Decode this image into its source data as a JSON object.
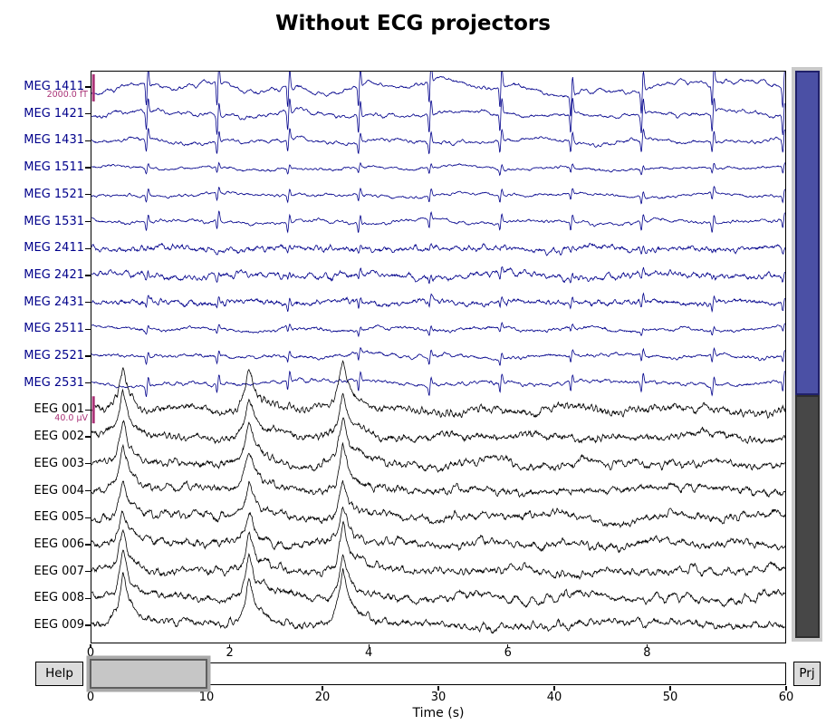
{
  "chart_data": {
    "type": "line",
    "title": "Without ECG projectors",
    "xlabel": "Time (s)",
    "x_axis": {
      "tick_labels": [
        "0",
        "2",
        "4",
        "6",
        "8"
      ],
      "tick_values": [
        0,
        2,
        4,
        6,
        8
      ],
      "window_s": [
        0,
        10
      ]
    },
    "scale_bars": {
      "meg": "2000.0 fT",
      "eeg": "40.0 µV"
    },
    "artifacts": {
      "ecg_first_beat_s": 0.8,
      "ecg_period_s": 1.02,
      "eeg_spike_times_s": [
        0.45,
        2.27,
        3.62
      ]
    },
    "channels": [
      {
        "label": "MEG 1411",
        "type": "meg",
        "ecg": 24,
        "slow": 6.5,
        "fast": 1.6,
        "hf": 0.7,
        "jit": 0.5
      },
      {
        "label": "MEG 1421",
        "type": "meg",
        "ecg": 20,
        "slow": 5.0,
        "fast": 1.6,
        "hf": 0.7,
        "jit": 0.5
      },
      {
        "label": "MEG 1431",
        "type": "meg",
        "ecg": 13,
        "slow": 3.2,
        "fast": 1.4,
        "hf": 0.8,
        "jit": 0.5
      },
      {
        "label": "MEG 1511",
        "type": "meg",
        "ecg": 6,
        "slow": 2.0,
        "fast": 1.0,
        "hf": 0.6,
        "jit": 0.4
      },
      {
        "label": "MEG 1521",
        "type": "meg",
        "ecg": 7.5,
        "slow": 2.2,
        "fast": 1.1,
        "hf": 0.6,
        "jit": 0.4
      },
      {
        "label": "MEG 1531",
        "type": "meg",
        "ecg": 10,
        "slow": 2.6,
        "fast": 1.2,
        "hf": 0.7,
        "jit": 0.4
      },
      {
        "label": "MEG 2411",
        "type": "meg",
        "ecg": 3.5,
        "slow": 1.8,
        "fast": 1.9,
        "hf": 1.2,
        "jit": 0.9
      },
      {
        "label": "MEG 2421",
        "type": "meg",
        "ecg": 6,
        "slow": 2.2,
        "fast": 2.0,
        "hf": 1.3,
        "jit": 0.9
      },
      {
        "label": "MEG 2431",
        "type": "meg",
        "ecg": 7,
        "slow": 2.0,
        "fast": 1.8,
        "hf": 1.2,
        "jit": 0.9
      },
      {
        "label": "MEG 2511",
        "type": "meg",
        "ecg": 5,
        "slow": 2.0,
        "fast": 1.2,
        "hf": 0.7,
        "jit": 0.5
      },
      {
        "label": "MEG 2521",
        "type": "meg",
        "ecg": 7.5,
        "slow": 2.2,
        "fast": 1.2,
        "hf": 0.7,
        "jit": 0.5
      },
      {
        "label": "MEG 2531",
        "type": "meg",
        "ecg": 11,
        "slow": 2.4,
        "fast": 1.3,
        "hf": 0.8,
        "jit": 0.5
      },
      {
        "label": "EEG 001",
        "type": "eeg",
        "spike": 52,
        "slow": 3.5,
        "fast": 2.6,
        "hf": 1.8,
        "jit": 1.3
      },
      {
        "label": "EEG 002",
        "type": "eeg",
        "spike": 46,
        "slow": 3.5,
        "fast": 2.6,
        "hf": 1.8,
        "jit": 1.3
      },
      {
        "label": "EEG 003",
        "type": "eeg",
        "spike": 45,
        "slow": 3.5,
        "fast": 2.6,
        "hf": 1.8,
        "jit": 1.3
      },
      {
        "label": "EEG 004",
        "type": "eeg",
        "spike": 52,
        "slow": 3.5,
        "fast": 2.6,
        "hf": 1.8,
        "jit": 1.3
      },
      {
        "label": "EEG 005",
        "type": "eeg",
        "spike": 42,
        "slow": 3.5,
        "fast": 2.6,
        "hf": 1.8,
        "jit": 1.3
      },
      {
        "label": "EEG 006",
        "type": "eeg",
        "spike": 40,
        "slow": 3.5,
        "fast": 2.6,
        "hf": 1.8,
        "jit": 1.3
      },
      {
        "label": "EEG 007",
        "type": "eeg",
        "spike": 46,
        "slow": 3.5,
        "fast": 2.6,
        "hf": 1.8,
        "jit": 1.3
      },
      {
        "label": "EEG 008",
        "type": "eeg",
        "spike": 50,
        "slow": 3.5,
        "fast": 2.6,
        "hf": 1.8,
        "jit": 1.3
      },
      {
        "label": "EEG 009",
        "type": "eeg",
        "spike": 58,
        "slow": 3.5,
        "fast": 2.6,
        "hf": 1.8,
        "jit": 1.3
      }
    ]
  },
  "overview_bar": {
    "axis_label": "Time (s)",
    "range_labels": [
      "0",
      "10",
      "20",
      "30",
      "40",
      "50",
      "60"
    ],
    "range_values": [
      0,
      10,
      20,
      30,
      40,
      50,
      60
    ],
    "view_start_s": 0,
    "view_end_s": 10
  },
  "buttons": {
    "help": "Help",
    "proj": "Prj"
  },
  "colors": {
    "meg": "#00008B",
    "eeg": "#000000",
    "scale_bar": "#AA3377",
    "vscroll_meg": "#4b50a5",
    "vscroll_eeg": "#474747",
    "button_bg": "#dcdcdc",
    "handle_fill": "#c6c6c6"
  }
}
